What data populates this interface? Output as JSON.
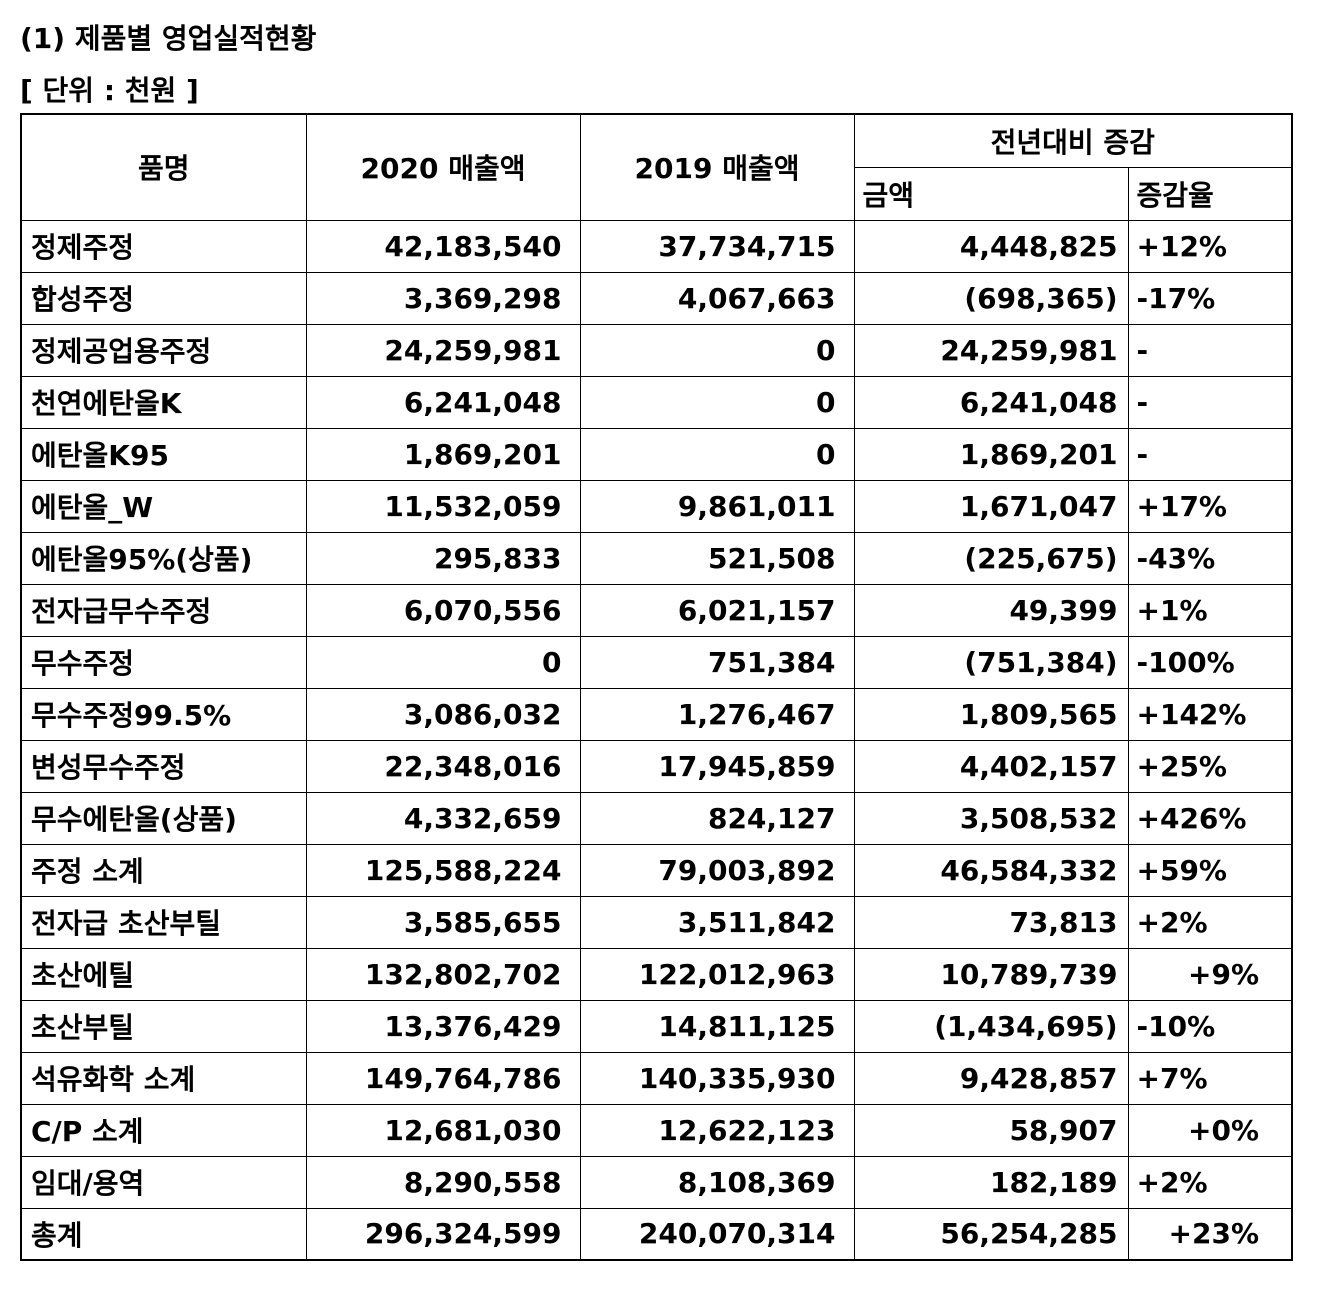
{
  "title": "(1) 제품별 영업실적현황",
  "unit": "[ 단위 : 천원 ]",
  "headers": {
    "product": "품명",
    "sales_2020": "2020 매출액",
    "sales_2019": "2019 매출액",
    "yoy": "전년대비 증감",
    "amount": "금액",
    "rate": "증감율"
  },
  "rows": [
    {
      "name": "정제주정",
      "y2020": "42,183,540",
      "y2019": "37,734,715",
      "amount": "4,448,825",
      "rate": "+12%"
    },
    {
      "name": "합성주정",
      "y2020": "3,369,298",
      "y2019": "4,067,663",
      "amount": "(698,365)",
      "rate": "-17%"
    },
    {
      "name": "정제공업용주정",
      "y2020": "24,259,981",
      "y2019": "0",
      "amount": "24,259,981",
      "rate": "-"
    },
    {
      "name": "천연에탄올K",
      "y2020": "6,241,048",
      "y2019": "0",
      "amount": "6,241,048",
      "rate": "-"
    },
    {
      "name": "에탄올K95",
      "y2020": "1,869,201",
      "y2019": "0",
      "amount": "1,869,201",
      "rate": "-"
    },
    {
      "name": "에탄올_W",
      "y2020": "11,532,059",
      "y2019": "9,861,011",
      "amount": "1,671,047",
      "rate": "+17%"
    },
    {
      "name": "에탄올95%(상품)",
      "y2020": "295,833",
      "y2019": "521,508",
      "amount": "(225,675)",
      "rate": "-43%"
    },
    {
      "name": "전자급무수주정",
      "y2020": "6,070,556",
      "y2019": "6,021,157",
      "amount": "49,399",
      "rate": "+1%"
    },
    {
      "name": "무수주정",
      "y2020": "0",
      "y2019": "751,384",
      "amount": "(751,384)",
      "rate": "-100%"
    },
    {
      "name": "무수주정99.5%",
      "y2020": "3,086,032",
      "y2019": "1,276,467",
      "amount": "1,809,565",
      "rate": "+142%"
    },
    {
      "name": "변성무수주정",
      "y2020": "22,348,016",
      "y2019": "17,945,859",
      "amount": "4,402,157",
      "rate": "+25%"
    },
    {
      "name": "무수에탄올(상품)",
      "y2020": "4,332,659",
      "y2019": "824,127",
      "amount": "3,508,532",
      "rate": "+426%"
    },
    {
      "name": "주정 소계",
      "y2020": "125,588,224",
      "y2019": "79,003,892",
      "amount": "46,584,332",
      "rate": "+59%"
    },
    {
      "name": "전자급 초산부틸",
      "y2020": "3,585,655",
      "y2019": "3,511,842",
      "amount": "73,813",
      "rate": "+2%"
    },
    {
      "name": "초산에틸",
      "y2020": "132,802,702",
      "y2019": "122,012,963",
      "amount": "10,789,739",
      "rate": "+9%"
    },
    {
      "name": "초산부틸",
      "y2020": "13,376,429",
      "y2019": "14,811,125",
      "amount": "(1,434,695)",
      "rate": "-10%"
    },
    {
      "name": "석유화학 소계",
      "y2020": "149,764,786",
      "y2019": "140,335,930",
      "amount": "9,428,857",
      "rate": "+7%"
    },
    {
      "name": "C/P 소계",
      "y2020": "12,681,030",
      "y2019": "12,622,123",
      "amount": "58,907",
      "rate": "+0%"
    },
    {
      "name": "임대/용역",
      "y2020": "8,290,558",
      "y2019": "8,108,369",
      "amount": "182,189",
      "rate": "+2%"
    },
    {
      "name": "총계",
      "y2020": "296,324,599",
      "y2019": "240,070,314",
      "amount": "56,254,285",
      "rate": "+23%"
    }
  ]
}
